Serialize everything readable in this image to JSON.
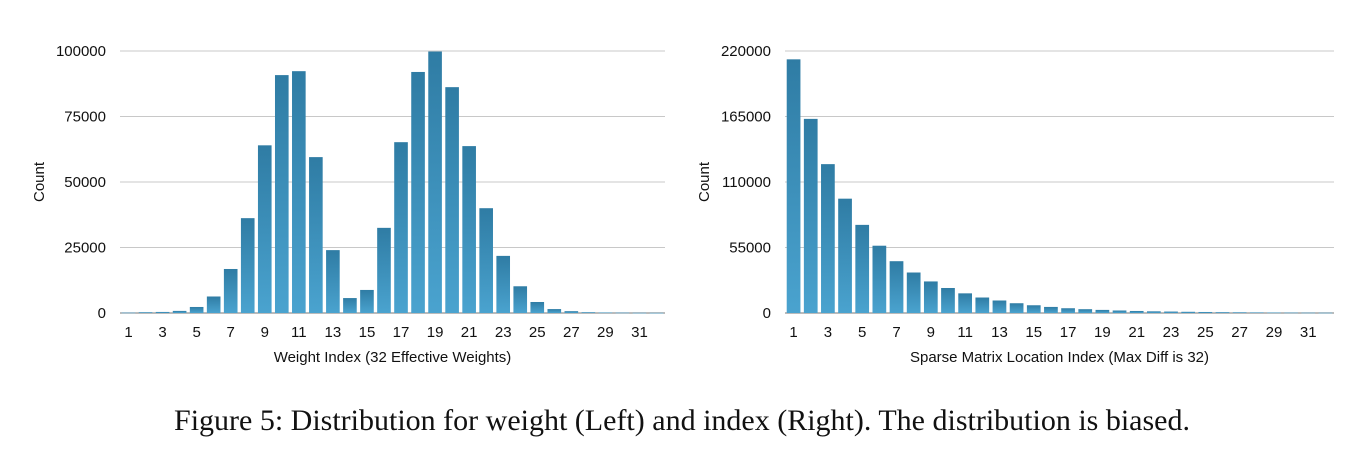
{
  "chart_data": [
    {
      "type": "bar",
      "xlabel": "Weight Index (32 Effective Weights)",
      "ylabel": "Count",
      "ylim": [
        0,
        100000
      ],
      "yticks": [
        0,
        25000,
        50000,
        75000,
        100000
      ],
      "grid": true,
      "color": "#3d8db8",
      "categories": [
        1,
        2,
        3,
        4,
        5,
        6,
        7,
        8,
        9,
        10,
        11,
        12,
        13,
        14,
        15,
        16,
        17,
        18,
        19,
        20,
        21,
        22,
        23,
        24,
        25,
        26,
        27,
        28,
        29,
        30,
        31,
        32
      ],
      "xtick_labels": [
        "1",
        "3",
        "5",
        "7",
        "9",
        "11",
        "13",
        "15",
        "17",
        "19",
        "21",
        "23",
        "25",
        "27",
        "29",
        "31"
      ],
      "values": [
        150,
        300,
        400,
        800,
        2300,
        6300,
        16800,
        36200,
        64000,
        90800,
        92300,
        59500,
        24000,
        5700,
        8800,
        32500,
        65200,
        92000,
        99800,
        86200,
        63700,
        40000,
        21800,
        10200,
        4200,
        1500,
        700,
        300,
        200,
        150,
        100,
        80
      ]
    },
    {
      "type": "bar",
      "xlabel": "Sparse Matrix Location Index (Max Diff is 32)",
      "ylabel": "Count",
      "ylim": [
        0,
        220000
      ],
      "yticks": [
        0,
        55000,
        110000,
        165000,
        220000
      ],
      "grid": true,
      "color": "#3d8db8",
      "categories": [
        1,
        2,
        3,
        4,
        5,
        6,
        7,
        8,
        9,
        10,
        11,
        12,
        13,
        14,
        15,
        16,
        17,
        18,
        19,
        20,
        21,
        22,
        23,
        24,
        25,
        26,
        27,
        28,
        29,
        30,
        31,
        32
      ],
      "xtick_labels": [
        "1",
        "3",
        "5",
        "7",
        "9",
        "11",
        "13",
        "15",
        "17",
        "19",
        "21",
        "23",
        "25",
        "27",
        "29",
        "31"
      ],
      "values": [
        213000,
        163000,
        125000,
        96000,
        74000,
        56500,
        43500,
        34000,
        26500,
        21000,
        16500,
        13000,
        10500,
        8200,
        6500,
        5100,
        4000,
        3200,
        2600,
        2100,
        1700,
        1400,
        1200,
        1000,
        850,
        700,
        600,
        500,
        420,
        350,
        300,
        250
      ]
    }
  ],
  "caption": "Figure 5: Distribution for weight (Left) and index (Right). The distribution is biased."
}
